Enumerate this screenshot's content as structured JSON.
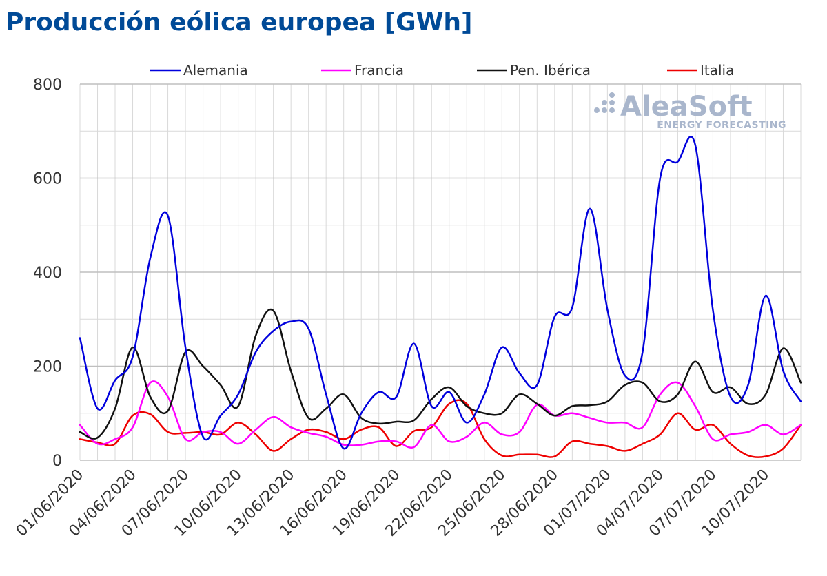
{
  "chart_data": {
    "type": "line",
    "title": "Producción eólica europea [GWh]",
    "xlabel": "",
    "ylabel": "",
    "ylim": [
      0,
      800
    ],
    "yticks": [
      0,
      200,
      400,
      600,
      800
    ],
    "grid": true,
    "legend_position": "top",
    "x": [
      "01/06/2020",
      "02/06/2020",
      "03/06/2020",
      "04/06/2020",
      "05/06/2020",
      "06/06/2020",
      "07/06/2020",
      "08/06/2020",
      "09/06/2020",
      "10/06/2020",
      "11/06/2020",
      "12/06/2020",
      "13/06/2020",
      "14/06/2020",
      "15/06/2020",
      "16/06/2020",
      "17/06/2020",
      "18/06/2020",
      "19/06/2020",
      "20/06/2020",
      "21/06/2020",
      "22/06/2020",
      "23/06/2020",
      "24/06/2020",
      "25/06/2020",
      "26/06/2020",
      "27/06/2020",
      "28/06/2020",
      "29/06/2020",
      "30/06/2020",
      "01/07/2020",
      "02/07/2020",
      "03/07/2020",
      "04/07/2020",
      "05/07/2020",
      "06/07/2020",
      "07/07/2020",
      "08/07/2020",
      "09/07/2020",
      "10/07/2020",
      "11/07/2020",
      "12/07/2020"
    ],
    "xtick_labels": [
      "01/06/2020",
      "04/06/2020",
      "07/06/2020",
      "10/06/2020",
      "13/06/2020",
      "16/06/2020",
      "19/06/2020",
      "22/06/2020",
      "25/06/2020",
      "28/06/2020",
      "01/07/2020",
      "04/07/2020",
      "07/07/2020",
      "10/07/2020"
    ],
    "series": [
      {
        "name": "Alemania",
        "color": "#0000dd",
        "values": [
          260,
          110,
          170,
          220,
          430,
          520,
          240,
          50,
          95,
          140,
          230,
          275,
          295,
          280,
          140,
          25,
          100,
          145,
          135,
          248,
          115,
          145,
          80,
          140,
          240,
          185,
          160,
          305,
          325,
          535,
          320,
          180,
          230,
          600,
          635,
          670,
          320,
          135,
          160,
          350,
          190,
          125
        ]
      },
      {
        "name": "Francia",
        "color": "#ff00ff",
        "values": [
          75,
          35,
          45,
          70,
          165,
          135,
          45,
          60,
          60,
          35,
          65,
          92,
          70,
          58,
          50,
          33,
          33,
          40,
          40,
          28,
          75,
          40,
          50,
          80,
          55,
          60,
          118,
          95,
          100,
          90,
          80,
          80,
          70,
          140,
          165,
          115,
          45,
          55,
          60,
          75,
          55,
          75
        ]
      },
      {
        "name": "Pen. Ibérica",
        "color": "#111111",
        "values": [
          60,
          48,
          110,
          240,
          135,
          105,
          230,
          200,
          160,
          115,
          265,
          318,
          190,
          90,
          110,
          140,
          90,
          78,
          82,
          85,
          130,
          155,
          115,
          100,
          100,
          140,
          120,
          95,
          115,
          117,
          125,
          160,
          165,
          125,
          140,
          210,
          145,
          155,
          120,
          140,
          238,
          165
        ]
      },
      {
        "name": "Italia",
        "color": "#ee0000",
        "values": [
          45,
          38,
          35,
          95,
          98,
          60,
          58,
          60,
          55,
          80,
          55,
          20,
          45,
          65,
          60,
          45,
          65,
          70,
          30,
          62,
          70,
          120,
          120,
          45,
          10,
          12,
          12,
          8,
          40,
          35,
          30,
          20,
          35,
          55,
          100,
          65,
          75,
          35,
          10,
          8,
          25,
          75
        ]
      }
    ]
  },
  "watermark": {
    "brand": "AleaSoft",
    "tagline": "ENERGY FORECASTING"
  }
}
